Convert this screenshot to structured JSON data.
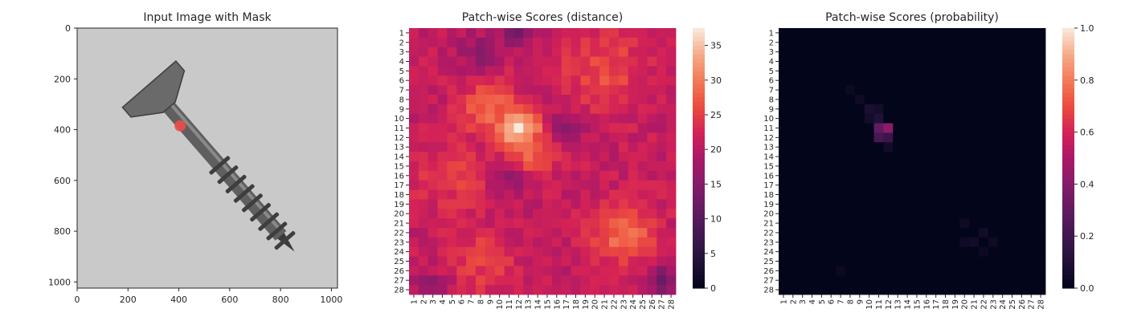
{
  "chart_data": [
    {
      "type": "image",
      "title": "Input Image with Mask",
      "xticks": [
        0,
        200,
        400,
        600,
        800,
        1000
      ],
      "yticks": [
        0,
        200,
        400,
        600,
        800,
        1000
      ],
      "xlim": [
        0,
        1024
      ],
      "ylim": [
        1024,
        0
      ],
      "mask_marker": {
        "x": 405,
        "y": 385,
        "color": "#f24a4a"
      },
      "screw": {
        "head_center": [
          300,
          240
        ],
        "tip": [
          855,
          880
        ],
        "color": "#5f5f5f"
      },
      "background_color": "#c9c9c9"
    },
    {
      "type": "heatmap",
      "title": "Patch-wise Scores (distance)",
      "rows": 28,
      "cols": 28,
      "tick_labels": [
        "1",
        "2",
        "3",
        "4",
        "5",
        "6",
        "7",
        "8",
        "9",
        "10",
        "11",
        "12",
        "13",
        "14",
        "15",
        "16",
        "17",
        "18",
        "19",
        "20",
        "21",
        "22",
        "23",
        "24",
        "25",
        "26",
        "27",
        "28"
      ],
      "colorbar": {
        "min": 0,
        "max": 37.5,
        "ticks": [
          0,
          5,
          10,
          15,
          20,
          25,
          30,
          35
        ]
      },
      "baseline": 21,
      "hotspots": [
        {
          "row": 11,
          "col": 12,
          "peak": 37,
          "spread": 1.6
        },
        {
          "row": 9,
          "col": 9,
          "peak": 29,
          "spread": 2.0
        },
        {
          "row": 13,
          "col": 13,
          "peak": 30,
          "spread": 1.8
        },
        {
          "row": 22,
          "col": 23,
          "peak": 29,
          "spread": 2.2
        },
        {
          "row": 5,
          "col": 21,
          "peak": 26,
          "spread": 3.0
        },
        {
          "row": 16,
          "col": 5,
          "peak": 25,
          "spread": 2.5
        },
        {
          "row": 25,
          "col": 8,
          "peak": 25,
          "spread": 2.5
        }
      ],
      "coldspots": [
        {
          "row": 1,
          "col": 12,
          "low": 14,
          "spread": 1.2
        },
        {
          "row": 3,
          "col": 8,
          "low": 16,
          "spread": 1.5
        },
        {
          "row": 11,
          "col": 17,
          "low": 15,
          "spread": 1.3
        },
        {
          "row": 16,
          "col": 11,
          "low": 15,
          "spread": 1.2
        },
        {
          "row": 27,
          "col": 27,
          "low": 12,
          "spread": 1.0
        },
        {
          "row": 28,
          "col": 3,
          "low": 16,
          "spread": 1.5
        }
      ]
    },
    {
      "type": "heatmap",
      "title": "Patch-wise Scores (probability)",
      "rows": 28,
      "cols": 28,
      "tick_labels": [
        "1",
        "2",
        "3",
        "4",
        "5",
        "6",
        "7",
        "8",
        "9",
        "10",
        "11",
        "12",
        "13",
        "14",
        "15",
        "16",
        "17",
        "18",
        "19",
        "20",
        "21",
        "22",
        "23",
        "24",
        "25",
        "26",
        "27",
        "28"
      ],
      "colorbar": {
        "min": 0,
        "max": 1.0,
        "ticks": [
          0.0,
          0.2,
          0.4,
          0.6,
          0.8,
          1.0
        ]
      },
      "background": 0.0,
      "cells": [
        {
          "row": 11,
          "col": 12,
          "value": 0.42
        },
        {
          "row": 11,
          "col": 11,
          "value": 0.3
        },
        {
          "row": 12,
          "col": 11,
          "value": 0.22
        },
        {
          "row": 12,
          "col": 12,
          "value": 0.18
        },
        {
          "row": 10,
          "col": 11,
          "value": 0.1
        },
        {
          "row": 9,
          "col": 10,
          "value": 0.08
        },
        {
          "row": 9,
          "col": 11,
          "value": 0.06
        },
        {
          "row": 10,
          "col": 10,
          "value": 0.06
        },
        {
          "row": 8,
          "col": 9,
          "value": 0.04
        },
        {
          "row": 7,
          "col": 8,
          "value": 0.03
        },
        {
          "row": 13,
          "col": 12,
          "value": 0.05
        },
        {
          "row": 21,
          "col": 20,
          "value": 0.04
        },
        {
          "row": 22,
          "col": 22,
          "value": 0.05
        },
        {
          "row": 23,
          "col": 20,
          "value": 0.04
        },
        {
          "row": 23,
          "col": 21,
          "value": 0.05
        },
        {
          "row": 23,
          "col": 23,
          "value": 0.04
        },
        {
          "row": 24,
          "col": 22,
          "value": 0.03
        },
        {
          "row": 26,
          "col": 7,
          "value": 0.03
        }
      ]
    }
  ]
}
